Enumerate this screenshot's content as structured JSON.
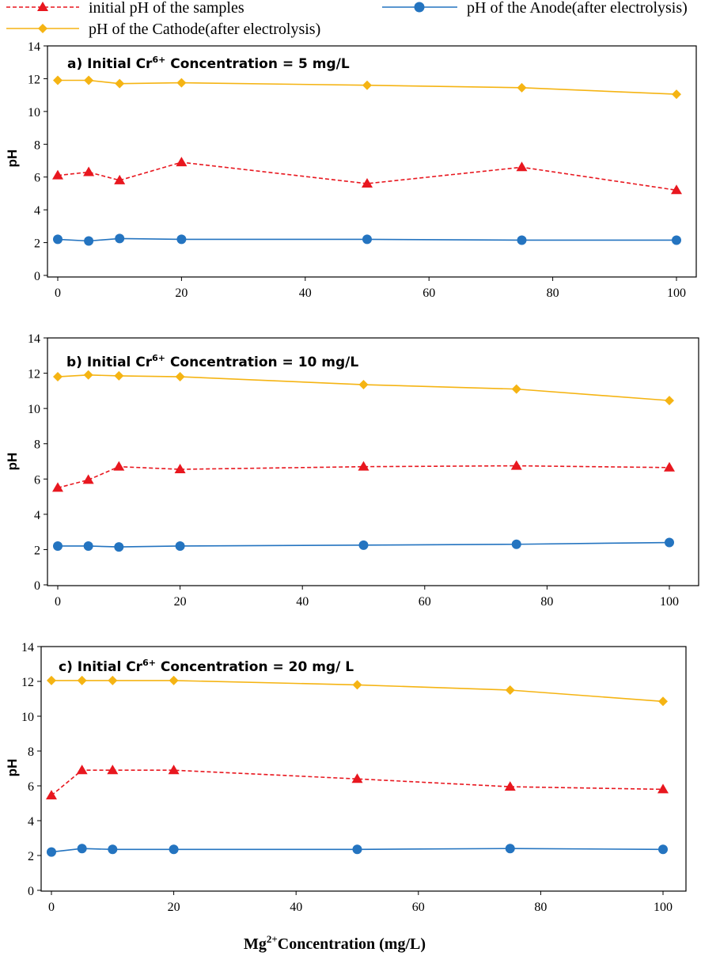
{
  "legend": [
    {
      "series": "initial",
      "label": "initial pH of the samples"
    },
    {
      "series": "anode",
      "label": "pH of the Anode(after electrolysis)"
    },
    {
      "series": "cathode",
      "label": "pH of the Cathode(after electrolysis)"
    }
  ],
  "series_styles": {
    "initial": {
      "color": "#E8171F",
      "marker": "triangle",
      "dash": true
    },
    "anode": {
      "color": "#2474C0",
      "marker": "circle",
      "dash": false
    },
    "cathode": {
      "color": "#F5B413",
      "marker": "diamond",
      "dash": false
    }
  },
  "x_axis_label": {
    "base": "Mg",
    "sup": "2+",
    "rest": "Concentration (mg/L)"
  },
  "chart_data": [
    {
      "type": "line",
      "title": {
        "prefix": "a) Initial Cr",
        "sup": "6+",
        "suffix": " Concentration = 5 mg/L"
      },
      "ylabel": "pH",
      "x": [
        0,
        5,
        10,
        20,
        50,
        75,
        100
      ],
      "xlim": [
        0,
        100
      ],
      "xticks": [
        0,
        20,
        40,
        60,
        80,
        100
      ],
      "ylim": [
        0,
        14
      ],
      "yticks": [
        0,
        2,
        4,
        6,
        8,
        10,
        12,
        14
      ],
      "series": [
        {
          "key": "initial",
          "name": "initial pH of the samples",
          "values": [
            6.1,
            6.3,
            5.8,
            6.9,
            5.6,
            6.6,
            5.2
          ]
        },
        {
          "key": "anode",
          "name": "pH of the Anode(after electrolysis)",
          "values": [
            2.2,
            2.1,
            2.25,
            2.2,
            2.2,
            2.15,
            2.15
          ]
        },
        {
          "key": "cathode",
          "name": "pH of the Cathode(after electrolysis)",
          "values": [
            11.9,
            11.9,
            11.7,
            11.75,
            11.6,
            11.45,
            11.05
          ]
        }
      ]
    },
    {
      "type": "line",
      "title": {
        "prefix": "b) Initial Cr",
        "sup": "6+",
        "suffix": " Concentration = 10 mg/L"
      },
      "ylabel": "pH",
      "x": [
        0,
        5,
        10,
        20,
        50,
        75,
        100
      ],
      "xlim": [
        0,
        100
      ],
      "xticks": [
        0,
        20,
        40,
        60,
        80,
        100
      ],
      "ylim": [
        0,
        14
      ],
      "yticks": [
        0,
        2,
        4,
        6,
        8,
        10,
        12,
        14
      ],
      "series": [
        {
          "key": "initial",
          "name": "initial pH of the samples",
          "values": [
            5.5,
            5.95,
            6.7,
            6.55,
            6.7,
            6.75,
            6.65
          ]
        },
        {
          "key": "anode",
          "name": "pH of the Anode(after electrolysis)",
          "values": [
            2.2,
            2.2,
            2.15,
            2.2,
            2.25,
            2.3,
            2.4
          ]
        },
        {
          "key": "cathode",
          "name": "pH of the Cathode(after electrolysis)",
          "values": [
            11.8,
            11.9,
            11.85,
            11.8,
            11.35,
            11.1,
            10.45
          ]
        }
      ]
    },
    {
      "type": "line",
      "title": {
        "prefix": "c) Initial Cr",
        "sup": "6+",
        "suffix": " Concentration = 20 mg/ L"
      },
      "ylabel": "pH",
      "x": [
        0,
        5,
        10,
        20,
        50,
        75,
        100
      ],
      "xlim": [
        0,
        100
      ],
      "xticks": [
        0,
        20,
        40,
        60,
        80,
        100
      ],
      "ylim": [
        0,
        14
      ],
      "yticks": [
        0,
        2,
        4,
        6,
        8,
        10,
        12,
        14
      ],
      "series": [
        {
          "key": "initial",
          "name": "initial pH of the samples",
          "values": [
            5.45,
            6.9,
            6.9,
            6.9,
            6.4,
            5.95,
            5.8
          ]
        },
        {
          "key": "anode",
          "name": "pH of the Anode(after electrolysis)",
          "values": [
            2.2,
            2.4,
            2.35,
            2.35,
            2.35,
            2.4,
            2.35
          ]
        },
        {
          "key": "cathode",
          "name": "pH of the Cathode(after electrolysis)",
          "values": [
            12.05,
            12.05,
            12.05,
            12.05,
            11.8,
            11.5,
            10.85
          ]
        }
      ]
    }
  ]
}
